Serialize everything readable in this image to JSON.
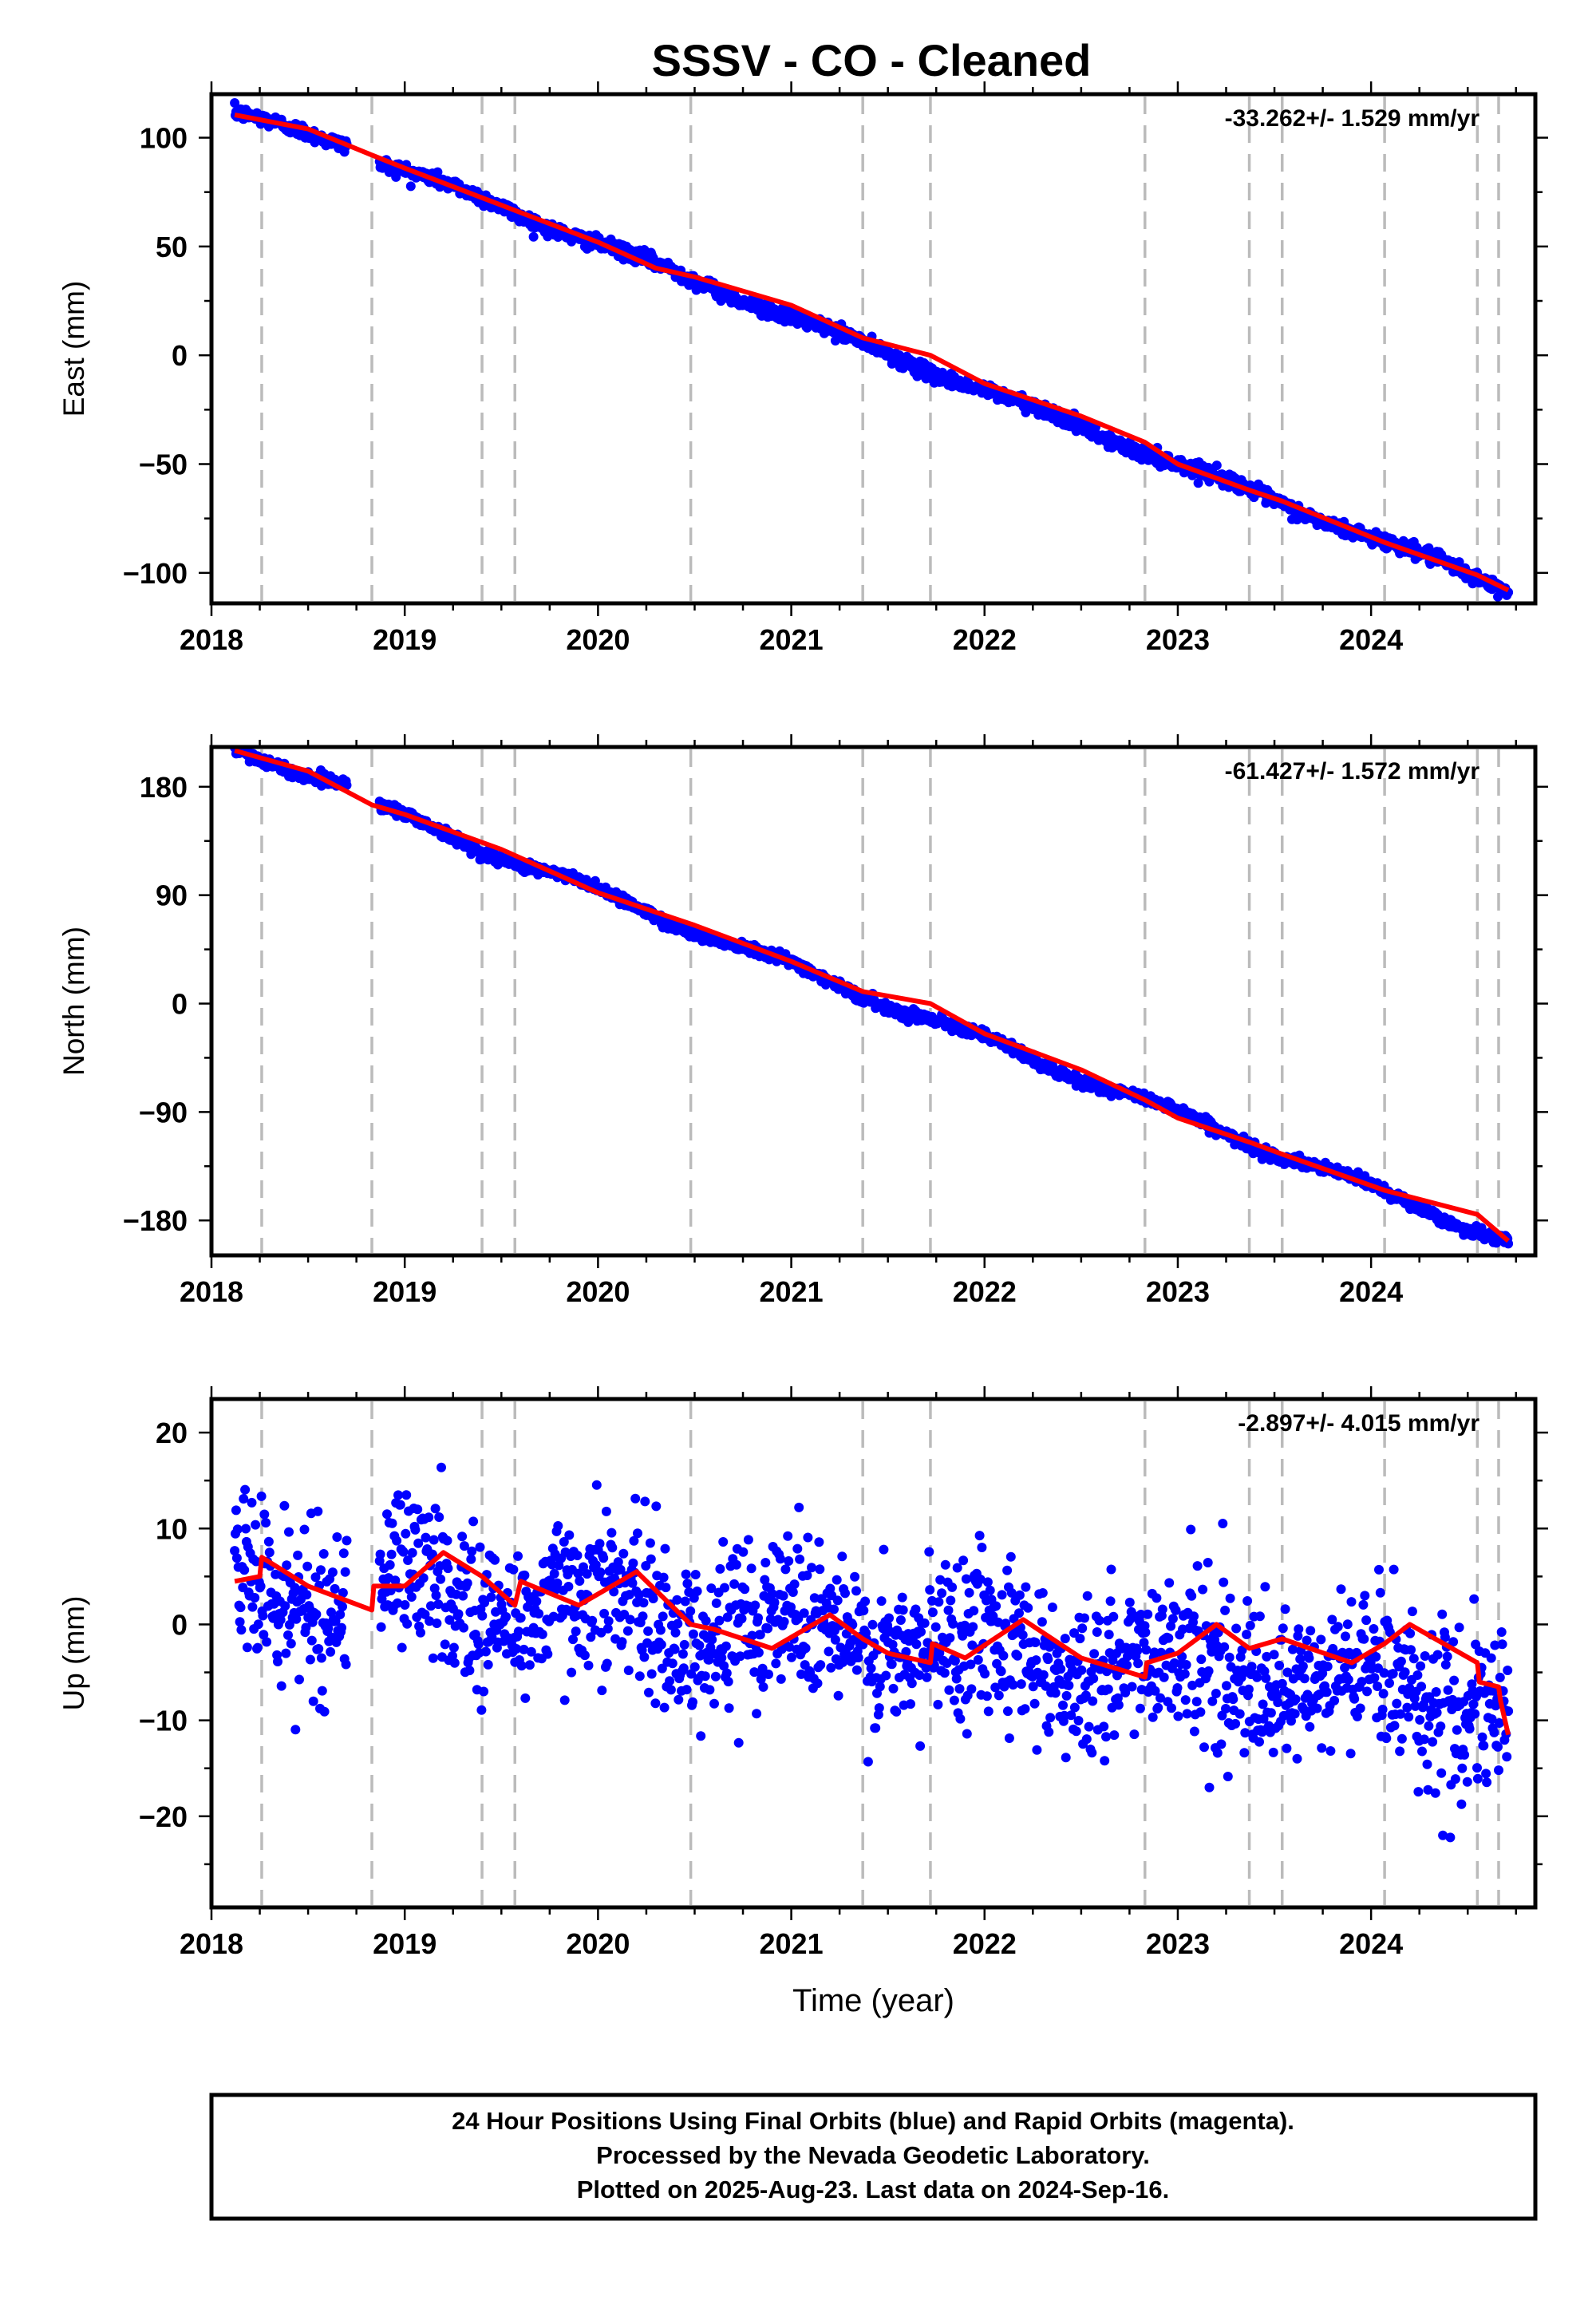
{
  "title": "SSSV  - CO - Cleaned",
  "colors": {
    "final_orbits": "#0000ff",
    "model": "#ff0000",
    "event_lines": "#bbbbbb",
    "frame": "#000000"
  },
  "chart_data": [
    {
      "type": "scatter",
      "ylabel": "East (mm)",
      "xlabel": "",
      "xlim": [
        2018.0,
        2024.85
      ],
      "ylim": [
        -114,
        120
      ],
      "x_ticks": [
        2018,
        2019,
        2020,
        2021,
        2022,
        2023,
        2024
      ],
      "x_tick_labels": [
        "2018",
        "2019",
        "2020",
        "2021",
        "2022",
        "2023",
        "2024"
      ],
      "y_ticks": [
        -100,
        -50,
        0,
        50,
        100
      ],
      "y_tick_labels": [
        "−100",
        "−50",
        "0",
        "50",
        "100"
      ],
      "rate_label": "-33.262+/- 1.529 mm/yr",
      "grid": false,
      "event_lines_x": [
        2018.26,
        2018.83,
        2019.4,
        2019.57,
        2020.48,
        2021.37,
        2021.72,
        2022.83,
        2023.37,
        2023.54,
        2024.07,
        2024.55,
        2024.66
      ],
      "data_segments": [
        {
          "x": [
            2018.12,
            2018.7
          ],
          "y": [
            110.5,
            97.5
          ]
        },
        {
          "x": [
            2018.87,
            2024.71
          ],
          "y": [
            89.3,
            -107.5
          ]
        }
      ],
      "wiggle": {
        "amplitude": 1.5,
        "period": 1.0,
        "phase": 0.0
      },
      "noise_sd": 1.6,
      "series": [
        {
          "x": [
            2018.12,
            2018.5,
            2018.83,
            2019.0,
            2019.5,
            2020.0,
            2020.3,
            2020.5,
            2021.0,
            2021.37,
            2021.72,
            2022.0,
            2022.5,
            2022.83,
            2023.0,
            2023.37,
            2023.54,
            2024.07,
            2024.55,
            2024.71
          ],
          "y": [
            110.5,
            104,
            92,
            86,
            69,
            52,
            40,
            36,
            23,
            8,
            0,
            -13,
            -28,
            -40,
            -50,
            -62,
            -67,
            -86,
            -101,
            -108
          ]
        }
      ]
    },
    {
      "type": "scatter",
      "ylabel": "North (mm)",
      "xlabel": "",
      "xlim": [
        2018.0,
        2024.85
      ],
      "ylim": [
        -209,
        213
      ],
      "x_ticks": [
        2018,
        2019,
        2020,
        2021,
        2022,
        2023,
        2024
      ],
      "x_tick_labels": [
        "2018",
        "2019",
        "2020",
        "2021",
        "2022",
        "2023",
        "2024"
      ],
      "y_ticks": [
        -180,
        -90,
        0,
        90,
        180
      ],
      "y_tick_labels": [
        "−180",
        "−90",
        "0",
        "90",
        "180"
      ],
      "rate_label": "-61.427+/- 1.572 mm/yr",
      "grid": false,
      "event_lines_x": [
        2018.26,
        2018.83,
        2019.4,
        2019.57,
        2020.48,
        2021.37,
        2021.72,
        2022.83,
        2023.37,
        2023.54,
        2024.07,
        2024.55,
        2024.66
      ],
      "data_segments": [
        {
          "x": [
            2018.12,
            2018.7
          ],
          "y": [
            210,
            183
          ]
        },
        {
          "x": [
            2018.87,
            2024.71
          ],
          "y": [
            162,
            -197
          ]
        }
      ],
      "wiggle": {
        "amplitude": 4,
        "period": 1.0,
        "phase": 0.3
      },
      "noise_sd": 2.2,
      "series": [
        {
          "x": [
            2018.12,
            2018.5,
            2018.83,
            2019.0,
            2019.5,
            2020.0,
            2020.5,
            2021.0,
            2021.37,
            2021.72,
            2022.0,
            2022.5,
            2022.83,
            2023.0,
            2023.37,
            2023.54,
            2024.07,
            2024.55,
            2024.71
          ],
          "y": [
            210,
            193,
            165,
            157,
            128,
            92,
            65,
            35,
            10,
            0,
            -25,
            -55,
            -80,
            -95,
            -115,
            -125,
            -155,
            -175,
            -197
          ]
        }
      ]
    },
    {
      "type": "scatter",
      "ylabel": "Up (mm)",
      "xlabel": "Time (year)",
      "xlim": [
        2018.0,
        2024.85
      ],
      "ylim": [
        -29.5,
        23.5
      ],
      "x_ticks": [
        2018,
        2019,
        2020,
        2021,
        2022,
        2023,
        2024
      ],
      "x_tick_labels": [
        "2018",
        "2019",
        "2020",
        "2021",
        "2022",
        "2023",
        "2024"
      ],
      "y_ticks": [
        -20,
        -10,
        0,
        10,
        20
      ],
      "y_tick_labels": [
        "−20",
        "−10",
        "0",
        "10",
        "20"
      ],
      "rate_label": "-2.897+/- 4.015 mm/yr",
      "grid": false,
      "event_lines_x": [
        2018.26,
        2018.83,
        2019.4,
        2019.57,
        2020.48,
        2021.37,
        2021.72,
        2022.83,
        2023.37,
        2023.54,
        2024.07,
        2024.55,
        2024.66
      ],
      "data_segments": [
        {
          "x": [
            2018.12,
            2018.7
          ],
          "y": [
            5,
            3
          ]
        },
        {
          "x": [
            2018.87,
            2024.71
          ],
          "y": [
            4,
            -8
          ]
        }
      ],
      "wiggle": {
        "amplitude": 2.5,
        "period": 1.0,
        "phase": 0.25
      },
      "noise_sd": 4.2,
      "series": [
        {
          "x": [
            2018.12,
            2018.25,
            2018.26,
            2018.5,
            2018.83,
            2018.84,
            2019.0,
            2019.2,
            2019.4,
            2019.57,
            2019.6,
            2019.9,
            2020.2,
            2020.48,
            2020.6,
            2020.9,
            2021.2,
            2021.37,
            2021.5,
            2021.72,
            2021.73,
            2021.9,
            2022.2,
            2022.5,
            2022.83,
            2022.84,
            2023.0,
            2023.2,
            2023.37,
            2023.54,
            2023.9,
            2024.07,
            2024.2,
            2024.55,
            2024.56,
            2024.66,
            2024.67,
            2024.71
          ],
          "y": [
            4.5,
            5,
            7,
            4,
            1.5,
            4,
            4,
            7.5,
            5,
            2,
            4.5,
            2,
            5.5,
            0,
            -0.5,
            -2.5,
            1,
            -1.5,
            -3,
            -4,
            -2,
            -3.5,
            0.5,
            -3.5,
            -5.5,
            -4,
            -3,
            0,
            -2.5,
            -1.5,
            -4,
            -2,
            0,
            -4,
            -6,
            -6.5,
            -8,
            -11.5
          ]
        }
      ]
    }
  ],
  "footer": {
    "lines": [
      "24 Hour Positions Using Final Orbits (blue) and Rapid Orbits (magenta).",
      "Processed by the Nevada Geodetic Laboratory.",
      "Plotted on 2025-Aug-23. Last data on 2024-Sep-16."
    ]
  }
}
